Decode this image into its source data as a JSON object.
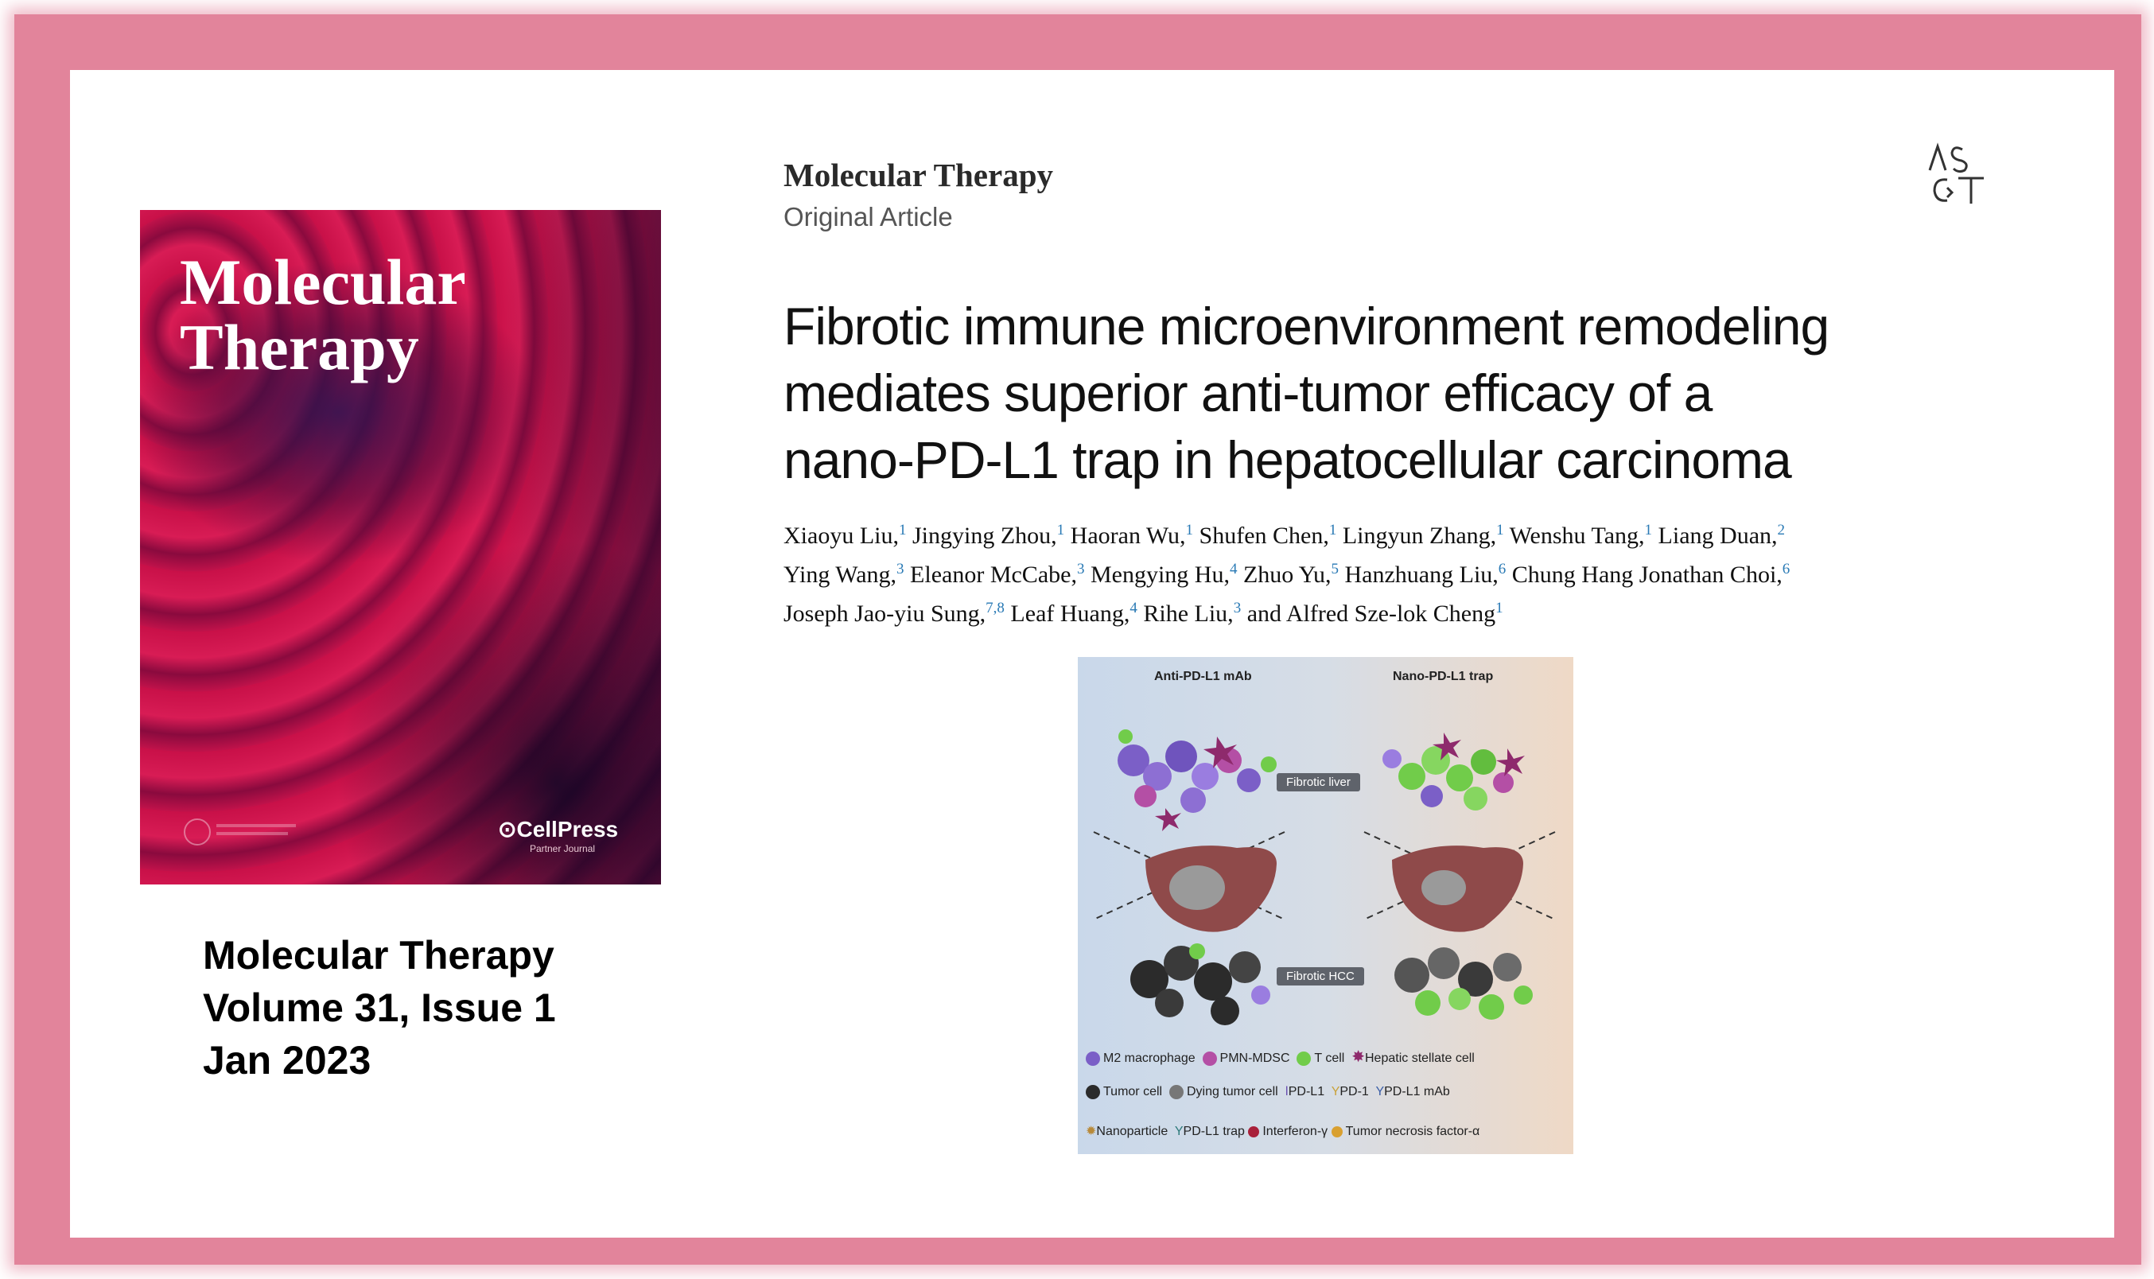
{
  "cover": {
    "title_line1": "Molecular",
    "title_line2": "Therapy",
    "publisher": "CellPress",
    "partner": "Partner Journal"
  },
  "citation": {
    "journal": "Molecular Therapy",
    "volume": "Volume 31, Issue 1",
    "date": "Jan 2023"
  },
  "article": {
    "journal": "Molecular Therapy",
    "type": "Original Article",
    "title_lines": [
      "Fibrotic immune microenvironment remodeling",
      "mediates superior anti-tumor efficacy of a",
      "nano-PD-L1 trap in hepatocellular carcinoma"
    ],
    "authors": [
      {
        "name": "Xiaoyu Liu,",
        "sup": "1"
      },
      {
        "name": "Jingying Zhou,",
        "sup": "1"
      },
      {
        "name": "Haoran Wu,",
        "sup": "1"
      },
      {
        "name": "Shufen Chen,",
        "sup": "1"
      },
      {
        "name": "Lingyun Zhang,",
        "sup": "1"
      },
      {
        "name": "Wenshu Tang,",
        "sup": "1"
      },
      {
        "name": "Liang Duan,",
        "sup": "2"
      },
      {
        "name": "Ying Wang,",
        "sup": "3"
      },
      {
        "name": "Eleanor McCabe,",
        "sup": "3"
      },
      {
        "name": "Mengying Hu,",
        "sup": "4"
      },
      {
        "name": "Zhuo Yu,",
        "sup": "5"
      },
      {
        "name": "Hanzhuang Liu,",
        "sup": "6"
      },
      {
        "name": "Chung Hang Jonathan Choi,",
        "sup": "6"
      },
      {
        "name": "Joseph Jao-yiu Sung,",
        "sup": "7,8"
      },
      {
        "name": "Leaf Huang,",
        "sup": "4"
      },
      {
        "name": "Rihe Liu,",
        "sup": "3"
      },
      {
        "name": "and Alfred Sze-lok Cheng",
        "sup": "1"
      }
    ]
  },
  "graphical_abstract": {
    "left_header": "Anti-PD-L1 mAb",
    "right_header": "Nano-PD-L1 trap",
    "tag_liver": "Fibrotic liver",
    "tag_hcc": "Fibrotic HCC",
    "legend": [
      [
        "M2 macrophage",
        "PMN-MDSC",
        "T cell",
        "Hepatic stellate cell"
      ],
      [
        "Tumor cell",
        "Dying tumor cell",
        "PD-L1",
        "PD-1",
        "PD-L1 mAb"
      ],
      [
        "Nanoparticle",
        "PD-L1 trap",
        "Interferon-γ",
        "Tumor necrosis factor-α"
      ]
    ]
  }
}
